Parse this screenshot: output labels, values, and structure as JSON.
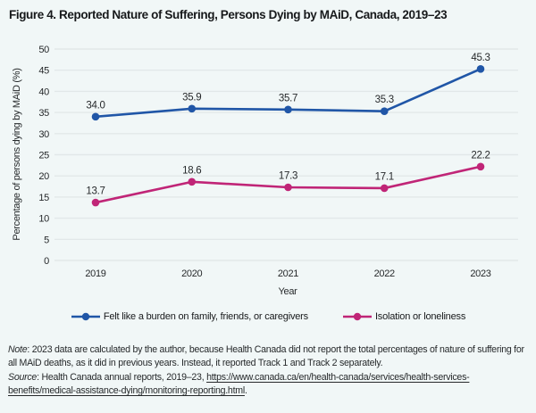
{
  "title": "Figure 4. Reported Nature of Suffering, Persons Dying by MAiD, Canada, 2019–23",
  "chart_data": {
    "type": "line",
    "title": "Figure 4. Reported Nature of Suffering, Persons Dying by MAiD, Canada, 2019–23",
    "categories": [
      "2019",
      "2020",
      "2021",
      "2022",
      "2023"
    ],
    "series": [
      {
        "id": "burden",
        "name": "Felt like a burden on family, friends, or caregivers",
        "color": "#2056a7",
        "values": [
          34.0,
          35.9,
          35.7,
          35.3,
          45.3
        ],
        "labels": [
          "34.0",
          "35.9",
          "35.7",
          "35.3",
          "45.3"
        ]
      },
      {
        "id": "isolation",
        "name": "Isolation or loneliness",
        "color": "#c02577",
        "values": [
          13.7,
          18.6,
          17.3,
          17.1,
          22.2
        ],
        "labels": [
          "13.7",
          "18.6",
          "17.3",
          "17.1",
          "22.2"
        ]
      }
    ],
    "xlabel": "Year",
    "ylabel": "Percentage of persons dying by MAiD (%)",
    "ylim": [
      0,
      50
    ],
    "ytick_step": 5,
    "grid": true,
    "grid_color": "#e2e8e9",
    "text_color": "#26292b",
    "background_color": "#f1f7f7",
    "legend_position": "bottom",
    "data_labels": true
  },
  "notes": {
    "note_label": "Note",
    "note_body": ": 2023 data are calculated by the author, because Health Canada did not report the total percentages of nature of suffering for all MAiD deaths, as it did in previous years. Instead, it reported Track 1 and Track 2 separately.",
    "source_label": "Source",
    "source_body": ": Health Canada annual reports, 2019–23, ",
    "source_url": "https://www.canada.ca/en/health-canada/services/health-services-benefits/medical-assistance-dying/monitoring-reporting.html",
    "source_suffix": "."
  }
}
